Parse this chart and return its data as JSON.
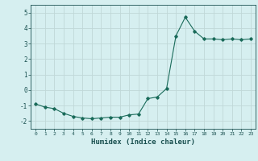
{
  "x": [
    0,
    1,
    2,
    3,
    4,
    5,
    6,
    7,
    8,
    9,
    10,
    11,
    12,
    13,
    14,
    15,
    16,
    17,
    18,
    19,
    20,
    21,
    22,
    23
  ],
  "y": [
    -0.9,
    -1.1,
    -1.2,
    -1.5,
    -1.7,
    -1.8,
    -1.85,
    -1.8,
    -1.75,
    -1.75,
    -1.6,
    -1.55,
    -0.55,
    -0.45,
    0.1,
    3.5,
    4.7,
    3.8,
    3.3,
    3.3,
    3.25,
    3.3,
    3.25,
    3.3
  ],
  "xlabel": "Humidex (Indice chaleur)",
  "ylim": [
    -2.5,
    5.5
  ],
  "xlim": [
    -0.5,
    23.5
  ],
  "yticks": [
    -2,
    -1,
    0,
    1,
    2,
    3,
    4,
    5
  ],
  "xticks": [
    0,
    1,
    2,
    3,
    4,
    5,
    6,
    7,
    8,
    9,
    10,
    11,
    12,
    13,
    14,
    15,
    16,
    17,
    18,
    19,
    20,
    21,
    22,
    23
  ],
  "line_color": "#1a6b5a",
  "marker_color": "#1a6b5a",
  "bg_color": "#d6eff0",
  "grid_color": "#c0d8d8",
  "tick_color": "#1a5050",
  "label_color": "#1a5050"
}
